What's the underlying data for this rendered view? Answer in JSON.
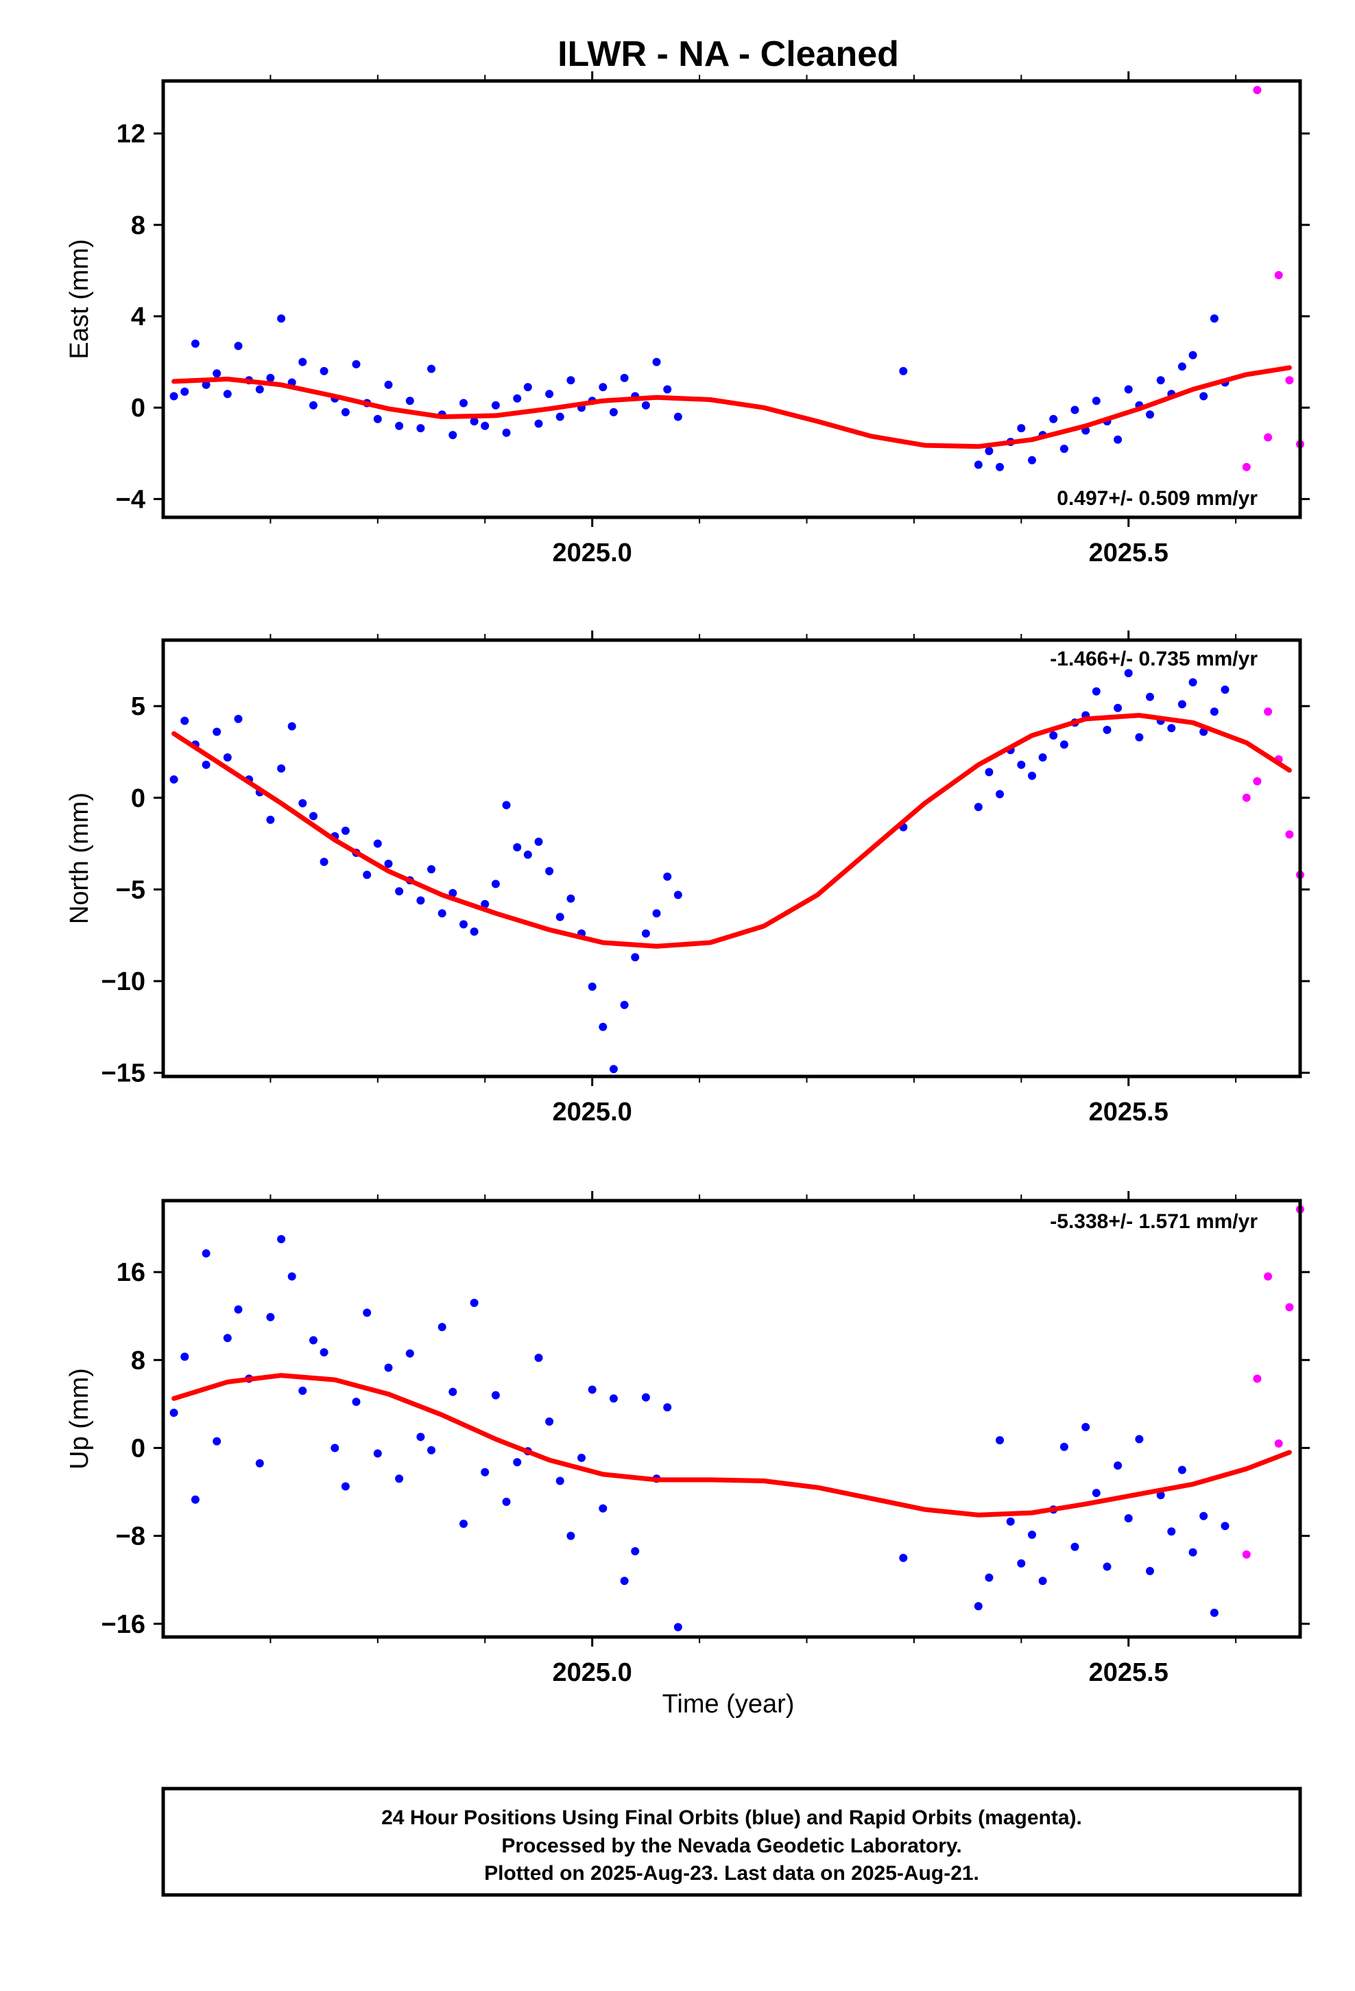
{
  "title": "ILWR  - NA - Cleaned",
  "xlabel": "Time (year)",
  "colors": {
    "final": "#0000ff",
    "rapid": "#ff00ff",
    "model": "#ff0000",
    "frame": "#000000"
  },
  "footer": {
    "line1": "24 Hour Positions Using Final Orbits (blue) and Rapid Orbits (magenta).",
    "line2": "Processed by the Nevada Geodetic Laboratory.",
    "line3": "Plotted on 2025-Aug-23. Last data on 2025-Aug-21."
  },
  "chart_data": [
    {
      "type": "scatter",
      "ylabel": "East (mm)",
      "rate_label": "0.497+/- 0.509 mm/yr",
      "xlim": [
        2024.6,
        2025.66
      ],
      "ylim": [
        -4.8,
        14.3
      ],
      "xticks": [
        2025.0,
        2025.5
      ],
      "xtick_labels": [
        "2025.0",
        "2025.5"
      ],
      "yticks": [
        -4,
        0,
        4,
        8,
        12
      ],
      "ytick_labels": [
        "−4",
        "0",
        "4",
        "8",
        "12"
      ],
      "series": [
        {
          "role": "final",
          "x": [
            2024.61,
            2024.62,
            2024.63,
            2024.64,
            2024.65,
            2024.66,
            2024.67,
            2024.68,
            2024.69,
            2024.7,
            2024.71,
            2024.72,
            2024.73,
            2024.74,
            2024.75,
            2024.76,
            2024.77,
            2024.78,
            2024.79,
            2024.8,
            2024.81,
            2024.82,
            2024.83,
            2024.84,
            2024.85,
            2024.86,
            2024.87,
            2024.88,
            2024.89,
            2024.9,
            2024.91,
            2024.92,
            2024.93,
            2024.94,
            2024.95,
            2024.96,
            2024.97,
            2024.98,
            2024.99,
            2025.0,
            2025.01,
            2025.02,
            2025.03,
            2025.04,
            2025.05,
            2025.06,
            2025.07,
            2025.08,
            2025.29,
            2025.36,
            2025.37,
            2025.38,
            2025.39,
            2025.4,
            2025.41,
            2025.42,
            2025.43,
            2025.44,
            2025.45,
            2025.46,
            2025.47,
            2025.48,
            2025.49,
            2025.5,
            2025.51,
            2025.52,
            2025.53,
            2025.54,
            2025.55,
            2025.56,
            2025.57,
            2025.58,
            2025.59
          ],
          "y": [
            0.5,
            0.7,
            2.8,
            1.0,
            1.5,
            0.6,
            2.7,
            1.2,
            0.8,
            1.3,
            3.9,
            1.1,
            2.0,
            0.1,
            1.6,
            0.4,
            -0.2,
            1.9,
            0.2,
            -0.5,
            1.0,
            -0.8,
            0.3,
            -0.9,
            1.7,
            -0.3,
            -1.2,
            0.2,
            -0.6,
            -0.8,
            0.1,
            -1.1,
            0.4,
            0.9,
            -0.7,
            0.6,
            -0.4,
            1.2,
            0.0,
            0.3,
            0.9,
            -0.2,
            1.3,
            0.5,
            0.1,
            2.0,
            0.8,
            -0.4,
            1.6,
            -2.5,
            -1.9,
            -2.6,
            -1.5,
            -0.9,
            -2.3,
            -1.2,
            -0.5,
            -1.8,
            -0.1,
            -1.0,
            0.3,
            -0.6,
            -1.4,
            0.8,
            0.1,
            -0.3,
            1.2,
            0.6,
            1.8,
            2.3,
            0.5,
            3.9,
            1.1
          ]
        },
        {
          "role": "rapid",
          "x": [
            2025.61,
            2025.62,
            2025.63,
            2025.64,
            2025.65,
            2025.66
          ],
          "y": [
            -2.6,
            13.9,
            -1.3,
            5.8,
            1.2,
            -1.6
          ]
        },
        {
          "role": "model",
          "x": [
            2024.61,
            2024.66,
            2024.71,
            2024.76,
            2024.81,
            2024.86,
            2024.91,
            2024.96,
            2025.01,
            2025.06,
            2025.11,
            2025.16,
            2025.21,
            2025.26,
            2025.31,
            2025.36,
            2025.41,
            2025.46,
            2025.51,
            2025.56,
            2025.61,
            2025.65
          ],
          "y": [
            1.15,
            1.25,
            1.0,
            0.5,
            -0.05,
            -0.4,
            -0.35,
            -0.05,
            0.3,
            0.45,
            0.35,
            0.0,
            -0.6,
            -1.25,
            -1.65,
            -1.7,
            -1.4,
            -0.8,
            -0.05,
            0.8,
            1.45,
            1.75
          ]
        }
      ]
    },
    {
      "type": "scatter",
      "ylabel": "North (mm)",
      "rate_label": "-1.466+/- 0.735 mm/yr",
      "xlim": [
        2024.6,
        2025.66
      ],
      "ylim": [
        -15.2,
        8.6
      ],
      "xticks": [
        2025.0,
        2025.5
      ],
      "xtick_labels": [
        "2025.0",
        "2025.5"
      ],
      "yticks": [
        -15,
        -10,
        -5,
        0,
        5
      ],
      "ytick_labels": [
        "−15",
        "−10",
        "−5",
        "0",
        "5"
      ],
      "series": [
        {
          "role": "final",
          "x": [
            2024.61,
            2024.62,
            2024.63,
            2024.64,
            2024.65,
            2024.66,
            2024.67,
            2024.68,
            2024.69,
            2024.7,
            2024.71,
            2024.72,
            2024.73,
            2024.74,
            2024.75,
            2024.76,
            2024.77,
            2024.78,
            2024.79,
            2024.8,
            2024.81,
            2024.82,
            2024.83,
            2024.84,
            2024.85,
            2024.86,
            2024.87,
            2024.88,
            2024.89,
            2024.9,
            2024.91,
            2024.92,
            2024.93,
            2024.94,
            2024.95,
            2024.96,
            2024.97,
            2024.98,
            2024.99,
            2025.0,
            2025.01,
            2025.02,
            2025.03,
            2025.04,
            2025.05,
            2025.06,
            2025.07,
            2025.08,
            2025.29,
            2025.36,
            2025.37,
            2025.38,
            2025.39,
            2025.4,
            2025.41,
            2025.42,
            2025.43,
            2025.44,
            2025.45,
            2025.46,
            2025.47,
            2025.48,
            2025.49,
            2025.5,
            2025.51,
            2025.52,
            2025.53,
            2025.54,
            2025.55,
            2025.56,
            2025.57,
            2025.58,
            2025.59
          ],
          "y": [
            1.0,
            4.2,
            2.9,
            1.8,
            3.6,
            2.2,
            4.3,
            1.0,
            0.3,
            -1.2,
            1.6,
            3.9,
            -0.3,
            -1.0,
            -3.5,
            -2.1,
            -1.8,
            -3.0,
            -4.2,
            -2.5,
            -3.6,
            -5.1,
            -4.5,
            -5.6,
            -3.9,
            -6.3,
            -5.2,
            -6.9,
            -7.3,
            -5.8,
            -4.7,
            -0.4,
            -2.7,
            -3.1,
            -2.4,
            -4.0,
            -6.5,
            -5.5,
            -7.4,
            -10.3,
            -12.5,
            -14.8,
            -11.3,
            -8.7,
            -7.4,
            -6.3,
            -4.3,
            -5.3,
            -1.6,
            -0.5,
            1.4,
            0.2,
            2.6,
            1.8,
            1.2,
            2.2,
            3.4,
            2.9,
            4.1,
            4.5,
            5.8,
            3.7,
            4.9,
            6.8,
            3.3,
            5.5,
            4.2,
            3.8,
            5.1,
            6.3,
            3.6,
            4.7,
            5.9
          ]
        },
        {
          "role": "rapid",
          "x": [
            2025.61,
            2025.62,
            2025.63,
            2025.64,
            2025.65,
            2025.66
          ],
          "y": [
            0.0,
            0.9,
            4.7,
            2.1,
            -2.0,
            -4.2
          ]
        },
        {
          "role": "model",
          "x": [
            2024.61,
            2024.66,
            2024.71,
            2024.76,
            2024.81,
            2024.86,
            2024.91,
            2024.96,
            2025.01,
            2025.06,
            2025.11,
            2025.16,
            2025.21,
            2025.26,
            2025.31,
            2025.36,
            2025.41,
            2025.46,
            2025.51,
            2025.56,
            2025.61,
            2025.65
          ],
          "y": [
            3.5,
            1.6,
            -0.3,
            -2.3,
            -4.0,
            -5.3,
            -6.3,
            -7.2,
            -7.9,
            -8.1,
            -7.9,
            -7.0,
            -5.3,
            -2.8,
            -0.3,
            1.8,
            3.4,
            4.3,
            4.5,
            4.1,
            3.0,
            1.5
          ]
        }
      ]
    },
    {
      "type": "scatter",
      "ylabel": "Up (mm)",
      "rate_label": "-5.338+/- 1.571 mm/yr",
      "xlim": [
        2024.6,
        2025.66
      ],
      "ylim": [
        -17.2,
        22.5
      ],
      "xticks": [
        2025.0,
        2025.5
      ],
      "xtick_labels": [
        "2025.0",
        "2025.5"
      ],
      "yticks": [
        -16,
        -8,
        0,
        8,
        16
      ],
      "ytick_labels": [
        "−16",
        "−8",
        "0",
        "8",
        "16"
      ],
      "series": [
        {
          "role": "final",
          "x": [
            2024.61,
            2024.62,
            2024.63,
            2024.64,
            2024.65,
            2024.66,
            2024.67,
            2024.68,
            2024.69,
            2024.7,
            2024.71,
            2024.72,
            2024.73,
            2024.74,
            2024.75,
            2024.76,
            2024.77,
            2024.78,
            2024.79,
            2024.8,
            2024.81,
            2024.82,
            2024.83,
            2024.84,
            2024.85,
            2024.86,
            2024.87,
            2024.88,
            2024.89,
            2024.9,
            2024.91,
            2024.92,
            2024.93,
            2024.94,
            2024.95,
            2024.96,
            2024.97,
            2024.98,
            2024.99,
            2025.0,
            2025.01,
            2025.02,
            2025.03,
            2025.04,
            2025.05,
            2025.06,
            2025.07,
            2025.08,
            2025.29,
            2025.36,
            2025.37,
            2025.38,
            2025.39,
            2025.4,
            2025.41,
            2025.42,
            2025.43,
            2025.44,
            2025.45,
            2025.46,
            2025.47,
            2025.48,
            2025.49,
            2025.5,
            2025.51,
            2025.52,
            2025.53,
            2025.54,
            2025.55,
            2025.56,
            2025.57,
            2025.58,
            2025.59
          ],
          "y": [
            3.2,
            8.3,
            -4.7,
            17.7,
            0.6,
            10.0,
            12.6,
            6.3,
            -1.4,
            11.9,
            19.0,
            15.6,
            5.2,
            9.8,
            8.7,
            0.0,
            -3.5,
            4.2,
            12.3,
            -0.5,
            7.3,
            -2.8,
            8.6,
            1.0,
            -0.2,
            11.0,
            5.1,
            -6.9,
            13.2,
            -2.2,
            4.8,
            -4.9,
            -1.3,
            -0.3,
            8.2,
            2.4,
            -3.0,
            -8.0,
            -0.9,
            5.3,
            -5.5,
            4.5,
            -12.1,
            -9.4,
            4.6,
            -2.8,
            3.7,
            -16.3,
            -10.0,
            -14.4,
            -11.8,
            0.7,
            -6.7,
            -10.5,
            -7.9,
            -12.1,
            -5.6,
            0.1,
            -9.0,
            1.9,
            -4.1,
            -10.8,
            -1.6,
            -6.4,
            0.8,
            -11.2,
            -4.3,
            -7.6,
            -2.0,
            -9.5,
            -6.2,
            -15.0,
            -7.1
          ]
        },
        {
          "role": "rapid",
          "x": [
            2025.61,
            2025.62,
            2025.63,
            2025.64,
            2025.65,
            2025.66
          ],
          "y": [
            -9.7,
            6.3,
            15.6,
            0.4,
            12.8,
            21.7
          ]
        },
        {
          "role": "model",
          "x": [
            2024.61,
            2024.66,
            2024.71,
            2024.76,
            2024.81,
            2024.86,
            2024.91,
            2024.96,
            2025.01,
            2025.06,
            2025.11,
            2025.16,
            2025.21,
            2025.26,
            2025.31,
            2025.36,
            2025.41,
            2025.46,
            2025.51,
            2025.56,
            2025.61,
            2025.65
          ],
          "y": [
            4.5,
            6.0,
            6.6,
            6.2,
            4.9,
            3.0,
            0.8,
            -1.1,
            -2.4,
            -2.9,
            -2.9,
            -3.0,
            -3.6,
            -4.6,
            -5.6,
            -6.1,
            -5.9,
            -5.1,
            -4.2,
            -3.3,
            -1.9,
            -0.4
          ]
        }
      ]
    }
  ]
}
